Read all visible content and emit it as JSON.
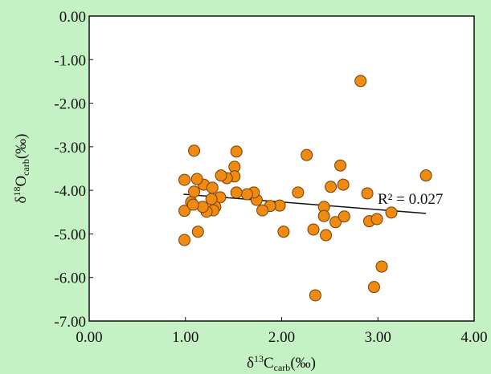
{
  "chart_data": {
    "type": "scatter",
    "xlabel_parts": [
      "δ",
      "13",
      "C",
      "carb",
      "(‰)"
    ],
    "ylabel_parts": [
      "δ",
      "18",
      "O",
      "carb",
      "(‰)"
    ],
    "annotation": "R² = 0.027",
    "color": "#ef8a12",
    "xlim": [
      0,
      4
    ],
    "ylim": [
      -7,
      0
    ],
    "xticks": [
      {
        "value": 0,
        "label": "0.00"
      },
      {
        "value": 1,
        "label": "1.00"
      },
      {
        "value": 2,
        "label": "2.00"
      },
      {
        "value": 3,
        "label": "3.00"
      },
      {
        "value": 4,
        "label": "4.00"
      }
    ],
    "yticks": [
      {
        "value": 0,
        "label": "0.00"
      },
      {
        "value": -1,
        "label": "-1.00"
      },
      {
        "value": -2,
        "label": "-2.00"
      },
      {
        "value": -3,
        "label": "-3.00"
      },
      {
        "value": -4,
        "label": "-4.00"
      },
      {
        "value": -5,
        "label": "-5.00"
      },
      {
        "value": -6,
        "label": "-6.00"
      },
      {
        "value": -7,
        "label": "-7.00"
      }
    ],
    "x": [
      1.09,
      1.53,
      2.26,
      2.82,
      3.5,
      2.89,
      2.51,
      2.64,
      2.61,
      3.14,
      2.91,
      2.99,
      3.04,
      2.96,
      2.35,
      2.33,
      2.46,
      2.56,
      2.65,
      2.44,
      2.44,
      2.17,
      2.02,
      1.98,
      1.88,
      1.8,
      1.74,
      1.71,
      1.64,
      1.53,
      1.51,
      1.51,
      1.43,
      1.37,
      1.36,
      1.31,
      1.29,
      1.22,
      1.18,
      1.13,
      0.99,
      0.99,
      1.06,
      1.09,
      1.19,
      1.28,
      1.08,
      1.27,
      0.99,
      1.12
    ],
    "y": [
      -3.09,
      -3.11,
      -3.19,
      -1.49,
      -3.66,
      -4.07,
      -3.92,
      -3.87,
      -3.43,
      -4.51,
      -4.71,
      -4.66,
      -5.75,
      -6.22,
      -6.41,
      -4.9,
      -5.03,
      -4.73,
      -4.6,
      -4.38,
      -4.59,
      -4.05,
      -4.95,
      -4.35,
      -4.36,
      -4.46,
      -4.22,
      -4.05,
      -4.09,
      -4.05,
      -3.46,
      -3.68,
      -3.72,
      -3.66,
      -4.16,
      -4.38,
      -4.46,
      -4.49,
      -4.38,
      -4.95,
      -5.14,
      -4.47,
      -4.27,
      -4.03,
      -3.87,
      -3.94,
      -4.33,
      -4.2,
      -3.76,
      -3.74
    ],
    "trendline": {
      "x": [
        0.98,
        3.5
      ],
      "y": [
        -4.09,
        -4.53
      ]
    }
  }
}
